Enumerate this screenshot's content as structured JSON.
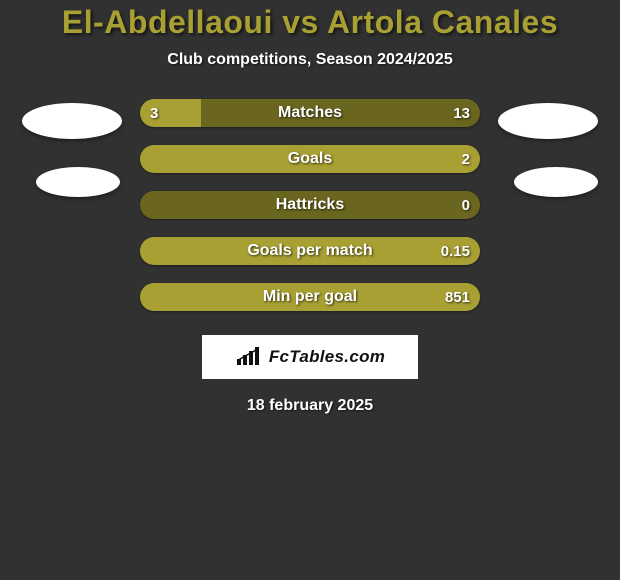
{
  "title_color": "#a8a032",
  "header": {
    "title": "El-Abdellaoui vs Artola Canales",
    "subtitle": "Club competitions, Season 2024/2025"
  },
  "colors": {
    "left_segment": "#a8a032",
    "right_segment": "#6a661f",
    "full_segment": "#a8a032",
    "background": "#313131",
    "oval": "#ffffff",
    "brand_bg": "#ffffff",
    "text": "#ffffff"
  },
  "stats": [
    {
      "label": "Matches",
      "left_val": "3",
      "right_val": "13",
      "left_pct": 18,
      "right_pct": 82,
      "show_left": true
    },
    {
      "label": "Goals",
      "left_val": "",
      "right_val": "2",
      "left_pct": 0,
      "right_pct": 100,
      "show_left": false
    },
    {
      "label": "Hattricks",
      "left_val": "",
      "right_val": "0",
      "left_pct": 0,
      "right_pct": 100,
      "show_left": false,
      "segment_color": "#6a661f"
    },
    {
      "label": "Goals per match",
      "left_val": "",
      "right_val": "0.15",
      "left_pct": 0,
      "right_pct": 100,
      "show_left": false
    },
    {
      "label": "Min per goal",
      "left_val": "",
      "right_val": "851",
      "left_pct": 0,
      "right_pct": 100,
      "show_left": false
    }
  ],
  "brand": {
    "text": "FcTables.com"
  },
  "footer": {
    "date": "18 february 2025"
  }
}
